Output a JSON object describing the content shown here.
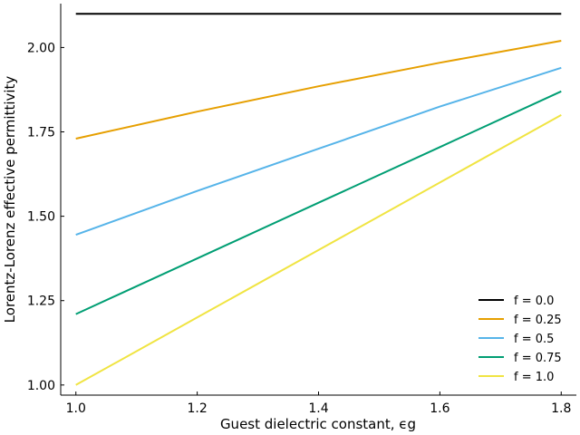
{
  "chart_data": {
    "type": "line",
    "title": "",
    "xlabel": "Guest dielectric constant, ϵg",
    "ylabel": "Lorentz-Lorenz effective permittivity",
    "xlim": [
      0.975,
      1.825
    ],
    "ylim": [
      0.97,
      2.13
    ],
    "xticks": [
      1.0,
      1.2,
      1.4,
      1.6,
      1.8
    ],
    "xtick_labels": [
      "1.0",
      "1.2",
      "1.4",
      "1.6",
      "1.8"
    ],
    "yticks": [
      1.0,
      1.25,
      1.5,
      1.75,
      2.0
    ],
    "ytick_labels": [
      "1.00",
      "1.25",
      "1.50",
      "1.75",
      "2.00"
    ],
    "grid": false,
    "legend_position": "bottom-right",
    "x": [
      1.0,
      1.2,
      1.4,
      1.6,
      1.8
    ],
    "series": [
      {
        "name": "f = 0.0",
        "color": "#000000",
        "values": [
          2.1,
          2.1,
          2.1,
          2.1,
          2.1
        ]
      },
      {
        "name": "f = 0.25",
        "color": "#E69F00",
        "values": [
          1.73,
          1.81,
          1.885,
          1.955,
          2.02
        ]
      },
      {
        "name": "f = 0.5",
        "color": "#56B4E9",
        "values": [
          1.445,
          1.575,
          1.7,
          1.825,
          1.94
        ]
      },
      {
        "name": "f = 0.75",
        "color": "#009E73",
        "values": [
          1.21,
          1.375,
          1.54,
          1.705,
          1.87
        ]
      },
      {
        "name": "f = 1.0",
        "color": "#F0E442",
        "values": [
          1.0,
          1.2,
          1.4,
          1.6,
          1.8
        ]
      }
    ]
  }
}
